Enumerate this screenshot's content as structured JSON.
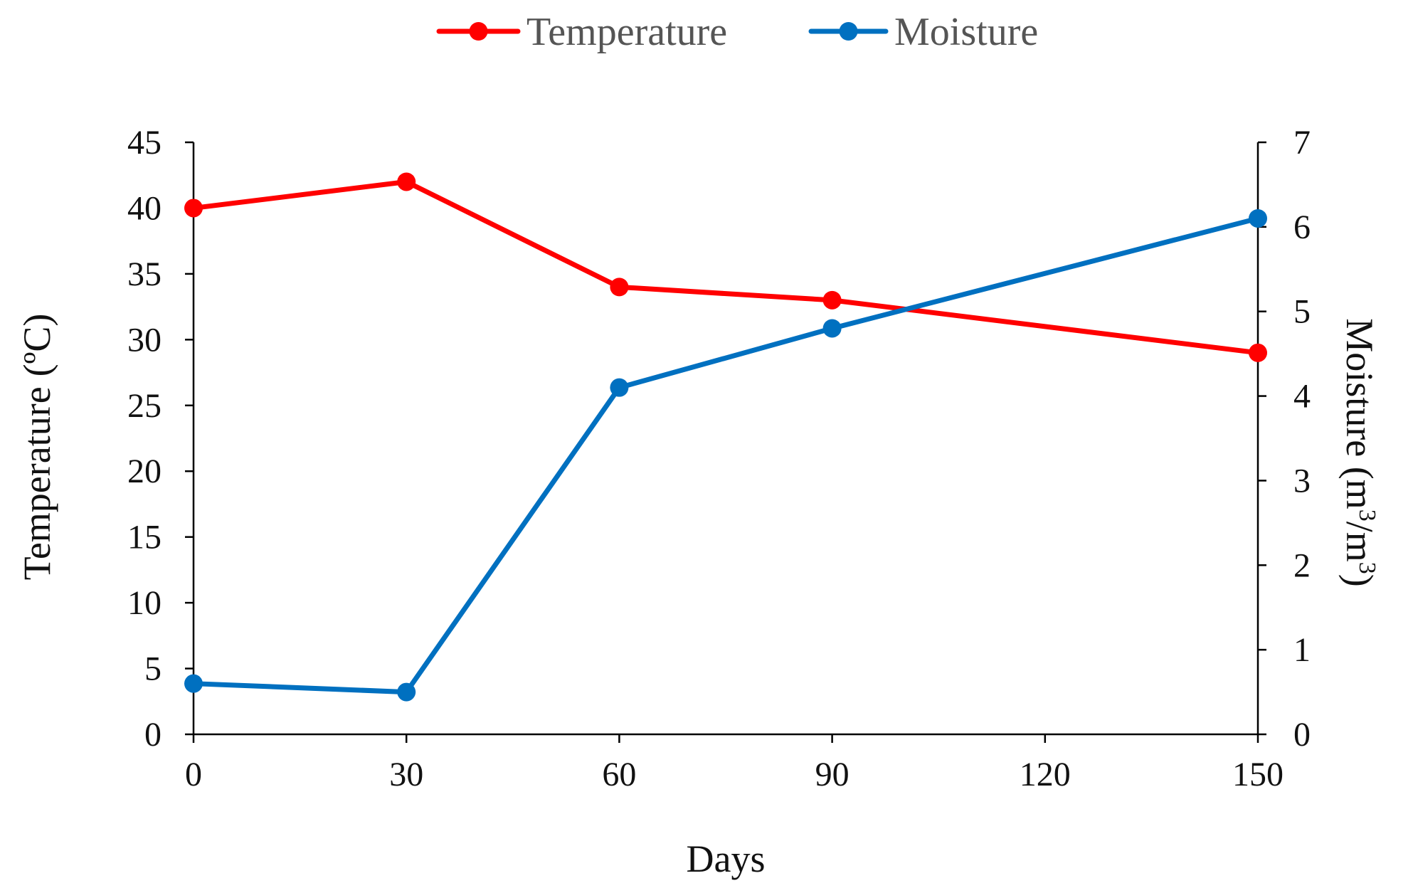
{
  "chart_data": {
    "type": "line",
    "title": "",
    "x": [
      0,
      30,
      60,
      90,
      150
    ],
    "xlabel": "Days",
    "xlim": [
      0,
      150
    ],
    "xticks": [
      0,
      30,
      60,
      90,
      120,
      150
    ],
    "y_left": {
      "label": "Temperature (ºC)",
      "label_main": "Temperature",
      "label_unit": "(ºC)",
      "ylim": [
        0,
        45
      ],
      "ticks": [
        0,
        5,
        10,
        15,
        20,
        25,
        30,
        35,
        40,
        45
      ]
    },
    "y_right": {
      "label": "Moisture (m3/m3)",
      "label_main": "Moisture (m",
      "label_sup1": "3",
      "label_mid": "/m",
      "label_sup2": "3",
      "label_end": ")",
      "ylim": [
        0,
        7
      ],
      "ticks": [
        0,
        1,
        2,
        3,
        4,
        5,
        6,
        7
      ]
    },
    "series": [
      {
        "name": "Temperature",
        "axis": "left",
        "color": "#FF0000",
        "values": [
          40,
          42,
          34,
          33,
          29
        ]
      },
      {
        "name": "Moisture",
        "axis": "right",
        "color": "#0070C0",
        "values": [
          0.6,
          0.5,
          4.1,
          4.8,
          6.1
        ]
      }
    ],
    "legend_position": "top-center",
    "grid": false
  }
}
